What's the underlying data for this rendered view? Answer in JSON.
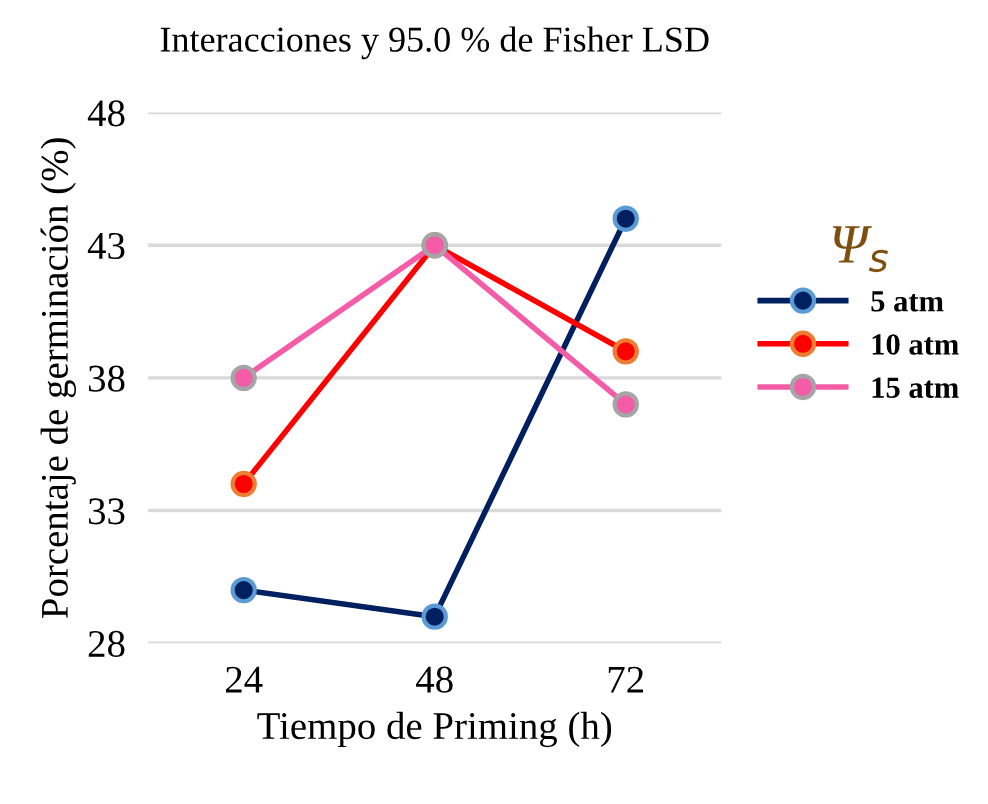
{
  "chart_data": {
    "type": "line",
    "title": "Interacciones y 95.0 % de Fisher LSD",
    "xlabel": "Tiempo de Priming (h)",
    "ylabel": "Porcentaje de germinación (%)",
    "legend_title": "Ψ$_{s}$",
    "categories": [
      "24",
      "48",
      "72"
    ],
    "series": [
      {
        "name": "5 atm",
        "color": "#002060",
        "values": [
          30,
          29,
          44
        ]
      },
      {
        "name": "10 atm",
        "color": "#ff0000",
        "values": [
          34,
          43,
          39
        ]
      },
      {
        "name": "15 atm",
        "color": "#f45ca8",
        "values": [
          38,
          43,
          37
        ]
      }
    ],
    "ylim": [
      28,
      48
    ],
    "yticks": [
      28,
      33,
      38,
      43,
      48
    ],
    "grid": "y",
    "legend": "right",
    "marker": "circle",
    "line_style": "solid"
  }
}
